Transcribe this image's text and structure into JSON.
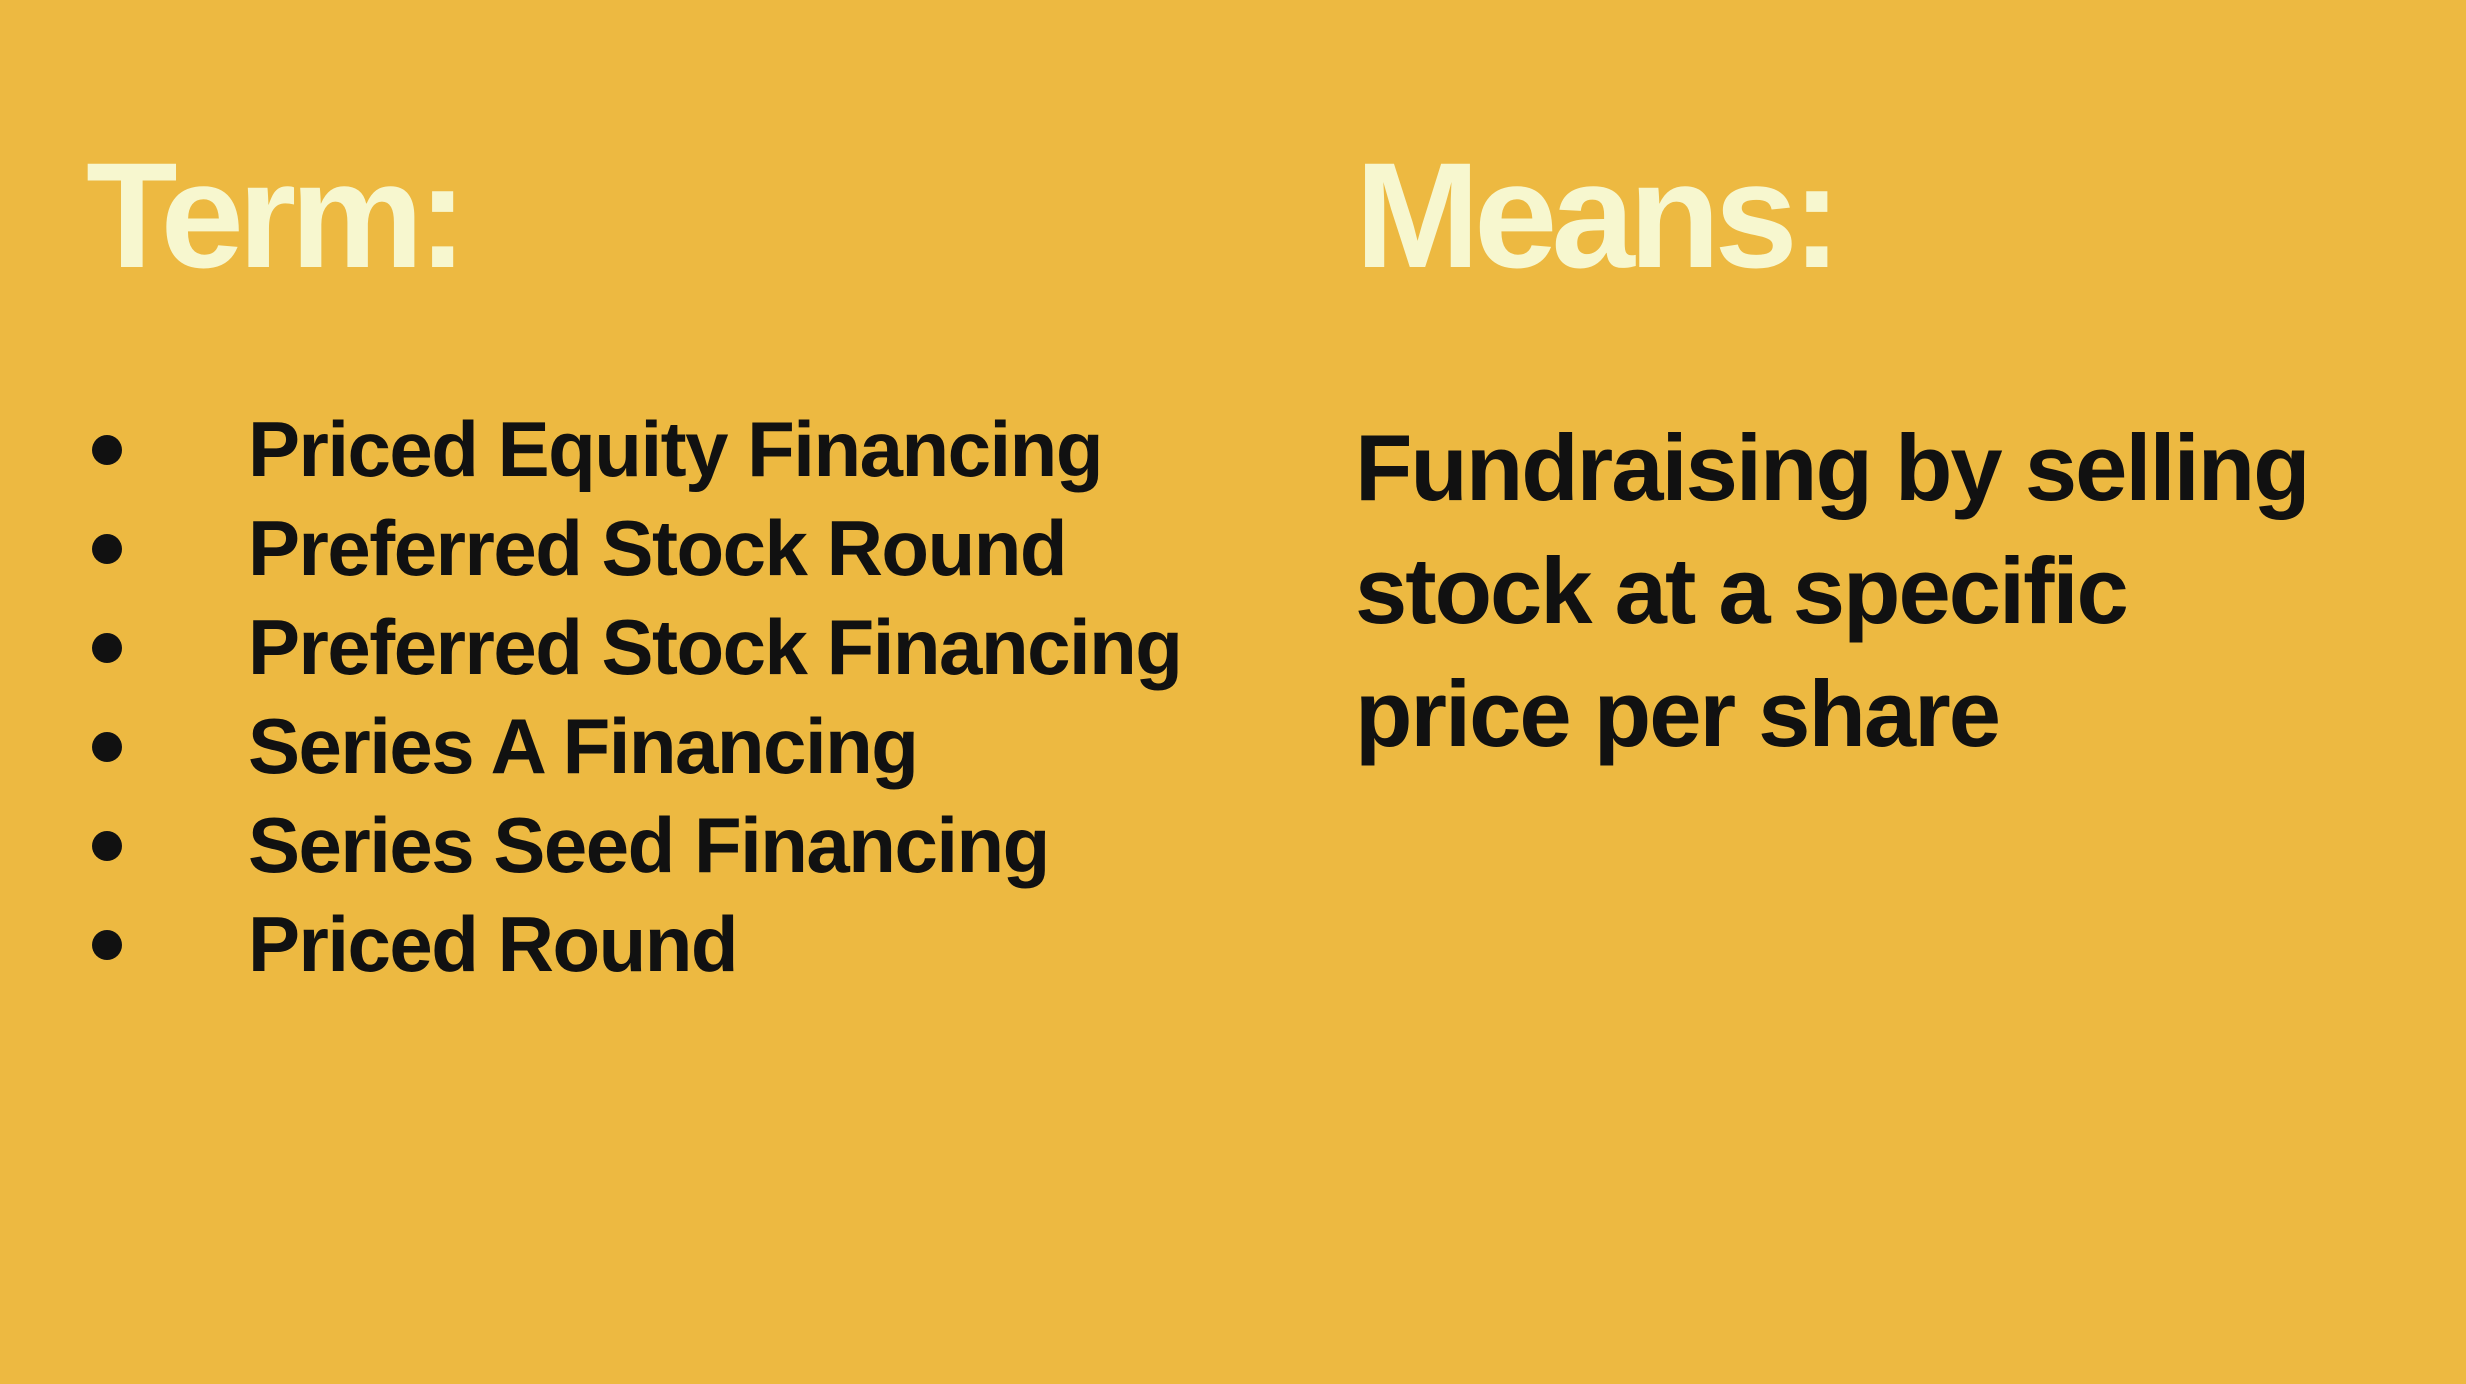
{
  "background_color": "#EDB941",
  "heading_color": "#F7F7CF",
  "text_color": "#111111",
  "left_column": {
    "heading": "Term:",
    "terms": [
      "Priced Equity Financing",
      "Preferred Stock Round",
      "Preferred Stock Financing",
      "Series A Financing",
      "Series Seed Financing",
      "Priced Round"
    ]
  },
  "right_column": {
    "heading": "Means:",
    "definition": "Fundraising by selling stock at a specific price per share"
  }
}
